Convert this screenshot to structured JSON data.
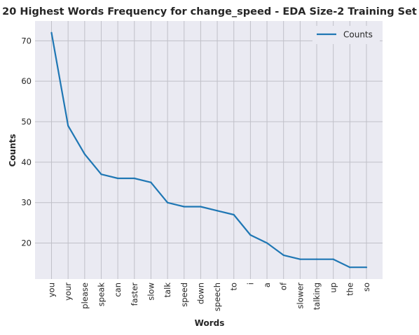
{
  "chart_data": {
    "type": "line",
    "title": "20 Highest Words Frequency for change_speed - EDA Size-2 Training Set",
    "xlabel": "Words",
    "ylabel": "Counts",
    "categories": [
      "you",
      "your",
      "please",
      "speak",
      "can",
      "faster",
      "slow",
      "talk",
      "speed",
      "down",
      "speech",
      "to",
      "i",
      "a",
      "of",
      "slower",
      "talking",
      "up",
      "the",
      "so"
    ],
    "series": [
      {
        "name": "Counts",
        "values": [
          72,
          49,
          42,
          37,
          36,
          36,
          35,
          30,
          29,
          29,
          28,
          27,
          22,
          20,
          17,
          16,
          16,
          16,
          14,
          14
        ]
      }
    ],
    "ylim": [
      11.1,
      74.9
    ],
    "yticks": [
      20,
      30,
      40,
      50,
      60,
      70
    ],
    "grid": true,
    "legend": "top-right",
    "colors": {
      "line": "#1f77b4",
      "background": "#eaeaf2",
      "grid": "#c0c0c8"
    }
  }
}
